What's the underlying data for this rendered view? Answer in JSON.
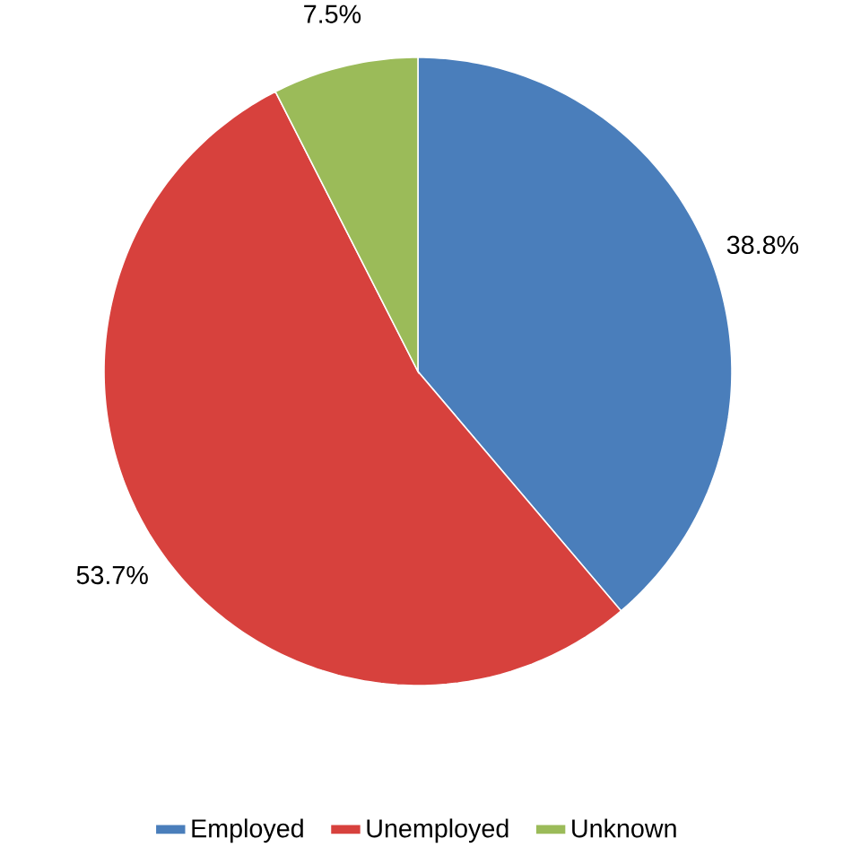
{
  "chart_data": {
    "type": "pie",
    "categories": [
      "Employed",
      "Unemployed",
      "Unknown"
    ],
    "values": [
      38.8,
      53.7,
      7.5
    ],
    "colors": [
      "#4a7ebb",
      "#d7413d",
      "#9bbb59"
    ],
    "value_labels": [
      "38.8%",
      "53.7%",
      "7.5%"
    ],
    "legend": "bottom"
  }
}
